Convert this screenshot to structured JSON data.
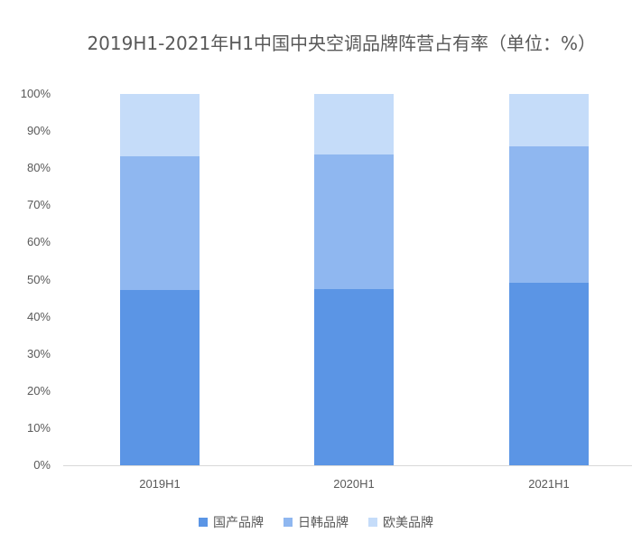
{
  "chart_data": {
    "type": "bar",
    "stacked": true,
    "title": "2019H1-2021年H1中国中央空调品牌阵营占有率（单位：%）",
    "xlabel": "",
    "ylabel": "",
    "categories": [
      "2019H1",
      "2020H1",
      "2021H1"
    ],
    "series": [
      {
        "name": "国产品牌",
        "color": "#5b95e5",
        "values": [
          47.2,
          47.4,
          49.1
        ]
      },
      {
        "name": "日韩品牌",
        "color": "#8fb7f0",
        "values": [
          36.0,
          36.3,
          36.8
        ]
      },
      {
        "name": "欧美品牌",
        "color": "#c5dcf9",
        "values": [
          16.8,
          16.3,
          14.1
        ]
      }
    ],
    "ylim": [
      0,
      100
    ],
    "yticks": [
      "0%",
      "10%",
      "20%",
      "30%",
      "40%",
      "50%",
      "60%",
      "70%",
      "80%",
      "90%",
      "100%"
    ],
    "grid": false,
    "legend_position": "bottom"
  }
}
